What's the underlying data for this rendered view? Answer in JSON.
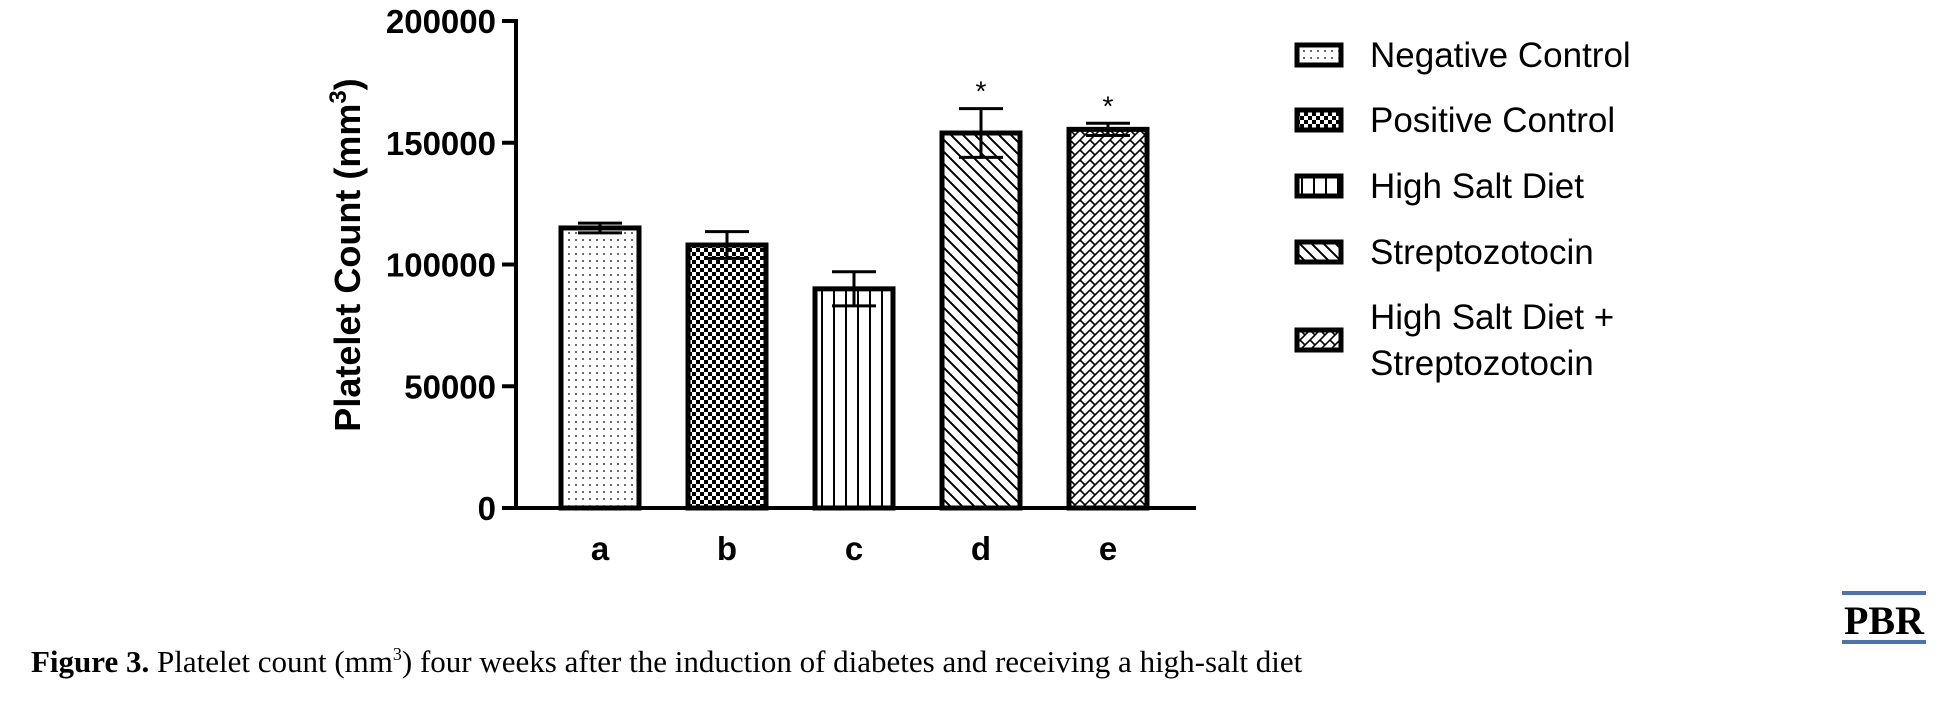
{
  "chart_data": {
    "type": "bar",
    "categories": [
      "a",
      "b",
      "c",
      "d",
      "e"
    ],
    "values": [
      115000,
      108000,
      90000,
      154000,
      155500
    ],
    "errors": [
      2000,
      5500,
      7000,
      10000,
      2500
    ],
    "significance": [
      "",
      "",
      "",
      "*",
      "*"
    ],
    "ylabel_main": "Platelet Count (mm",
    "ylabel_sup": "3",
    "ylabel_close": ")",
    "ylim": [
      0,
      200000
    ],
    "yticks": [
      "0",
      "50000",
      "100000",
      "150000",
      "200000"
    ],
    "ytick_values": [
      0,
      50000,
      100000,
      150000,
      200000
    ],
    "legend_position": "right",
    "legend": [
      {
        "lines": [
          "Negative Control"
        ],
        "pattern": "dots"
      },
      {
        "lines": [
          "Positive Control"
        ],
        "pattern": "checker"
      },
      {
        "lines": [
          "High Salt Diet"
        ],
        "pattern": "vertical"
      },
      {
        "lines": [
          "Streptozotocin"
        ],
        "pattern": "diagonal"
      },
      {
        "lines": [
          "High Salt Diet +",
          "Streptozotocin"
        ],
        "pattern": "zigzag"
      }
    ],
    "bar_patterns": [
      "dots",
      "checker",
      "vertical",
      "diagonal",
      "zigzag"
    ]
  },
  "caption": {
    "label": "Figure 3.",
    "text_before": " Platelet count (mm",
    "sup": "3",
    "text_after": ") four weeks after the induction of diabetes and receiving a high-salt diet"
  },
  "logo": {
    "text": "PBR",
    "color": "#4a74b0"
  }
}
